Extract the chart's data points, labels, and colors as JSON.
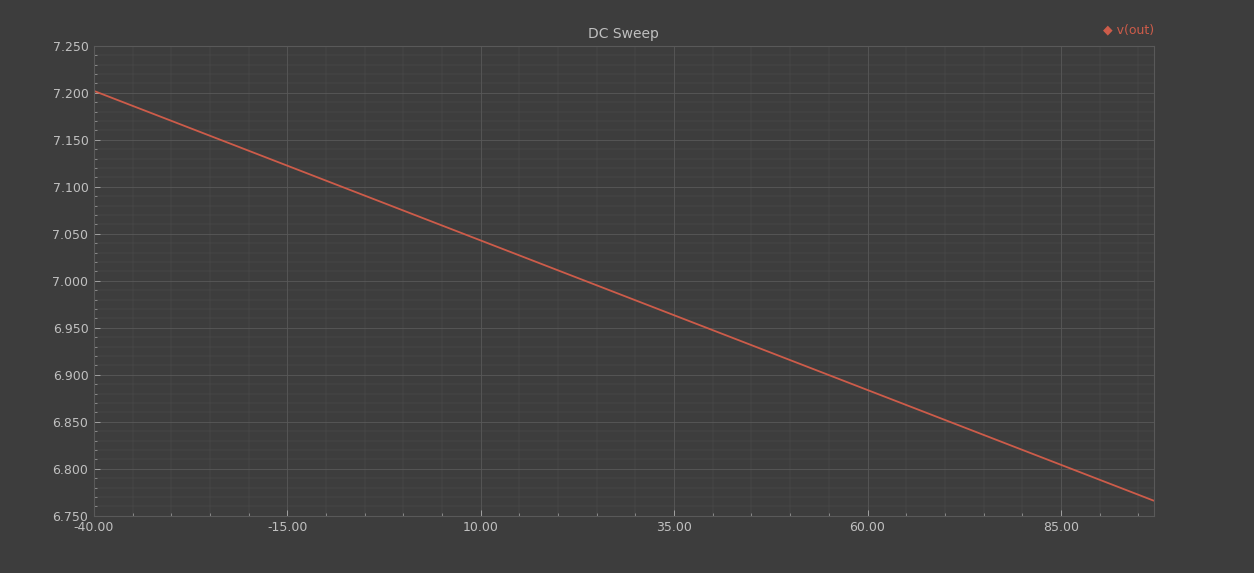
{
  "title": "DC Sweep",
  "background_color": "#3d3d3d",
  "plot_bg_color": "#3d3d3d",
  "line_color": "#cd5c4a",
  "line_width": 1.3,
  "grid_color": "#595959",
  "text_color": "#c0c0c0",
  "legend_label": "v(out)",
  "legend_marker": "◆",
  "x_start": -40,
  "x_end": 97,
  "y_start": 7.202,
  "y_end": 6.766,
  "xlim": [
    -40,
    97
  ],
  "ylim": [
    6.75,
    7.25
  ],
  "xticks": [
    -40.0,
    -15.0,
    10.0,
    35.0,
    60.0,
    85.0
  ],
  "yticks": [
    6.75,
    6.8,
    6.85,
    6.9,
    6.95,
    7.0,
    7.05,
    7.1,
    7.15,
    7.2,
    7.25
  ],
  "title_fontsize": 10,
  "tick_fontsize": 9,
  "legend_fontsize": 9
}
